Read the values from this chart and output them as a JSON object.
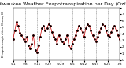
{
  "title": "Milwaukee Weather Evapotranspiration per Day (Oz/sq ft)",
  "title_fontsize": 4.5,
  "bg_color": "#ffffff",
  "line_color": "#cc0000",
  "dot_color": "#000000",
  "y_values": [
    3.2,
    4.5,
    5.8,
    5.2,
    4.1,
    3.8,
    3.2,
    2.8,
    3.5,
    2.2,
    1.8,
    2.5,
    3.8,
    1.5,
    1.2,
    2.2,
    3.5,
    4.8,
    5.2,
    4.5,
    4.8,
    5.5,
    5.2,
    4.2,
    3.5,
    3.2,
    2.5,
    3.8,
    3.2,
    2.8,
    2.5,
    3.2,
    3.8,
    2.2,
    1.8,
    2.5,
    3.2,
    3.8,
    4.5,
    5.2,
    4.8,
    4.2,
    3.5,
    4.8,
    5.5,
    5.2,
    4.5,
    3.8,
    3.2,
    2.8,
    3.5,
    4.2,
    4.8,
    5.5,
    5.2,
    4.5,
    3.8,
    3.5,
    4.2,
    4.8,
    5.2,
    4.5,
    3.8,
    3.2
  ],
  "ylim": [
    0,
    8
  ],
  "yticks": [
    0,
    1,
    2,
    3,
    4,
    5,
    6,
    7,
    8
  ],
  "ytick_labels": [
    "0",
    "1",
    "2",
    "3",
    "4",
    "5",
    "6",
    "7",
    ""
  ],
  "vline_positions": [
    7,
    14,
    21,
    28,
    35,
    42,
    49,
    56
  ],
  "ylabel_fontsize": 3.0,
  "tick_fontsize": 3.0,
  "xlabel_fontsize": 3.0,
  "xtick_positions": [
    0,
    7,
    14,
    21,
    28,
    35,
    42,
    49,
    56,
    63
  ],
  "xtick_labels": [
    "5/1",
    "5/8",
    "5/15",
    "5/22",
    "5/29",
    "6/5",
    "6/12",
    "6/19",
    "6/26",
    "7/3"
  ],
  "left_label": "Evapotranspiration (Oz/sq ft)",
  "figsize": [
    1.6,
    0.87
  ],
  "dpi": 100
}
